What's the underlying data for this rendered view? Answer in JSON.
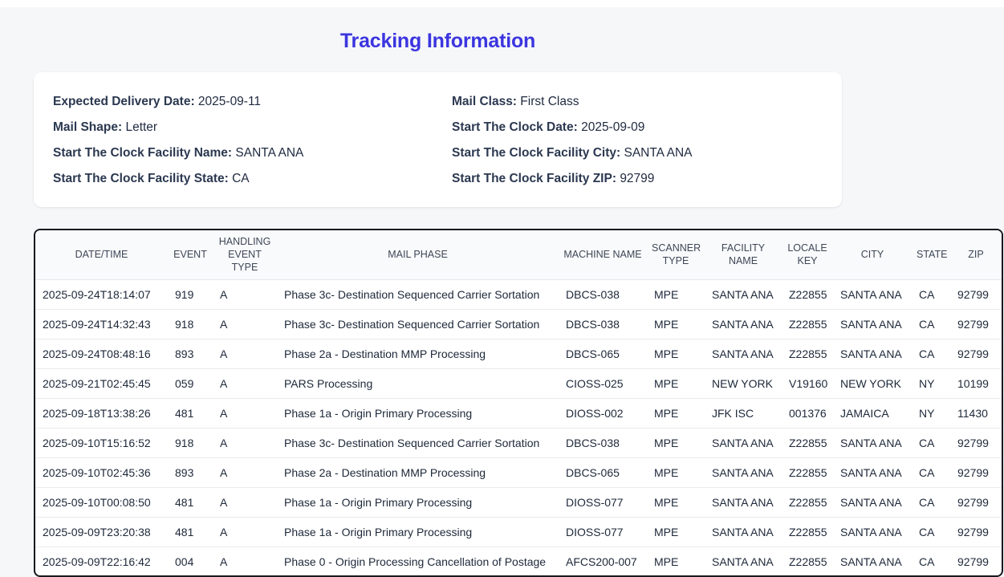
{
  "page": {
    "title": "Tracking Information"
  },
  "colors": {
    "title_accent": "#3b35e0",
    "table_border": "#16181d",
    "page_background": "#f6f7f9",
    "header_background": "#f9fafb"
  },
  "summary": {
    "fields": [
      {
        "label": "Expected Delivery Date:",
        "value": "2025-09-11"
      },
      {
        "label": "Mail Class:",
        "value": "First Class"
      },
      {
        "label": "Mail Shape:",
        "value": "Letter"
      },
      {
        "label": "Start The Clock Date:",
        "value": "2025-09-09"
      },
      {
        "label": "Start The Clock Facility Name:",
        "value": "SANTA ANA"
      },
      {
        "label": "Start The Clock Facility City:",
        "value": "SANTA ANA"
      },
      {
        "label": "Start The Clock Facility State:",
        "value": "CA"
      },
      {
        "label": "Start The Clock Facility ZIP:",
        "value": "92799"
      }
    ]
  },
  "table": {
    "columns": [
      "DATE/TIME",
      "EVENT",
      "HANDLING EVENT TYPE",
      "MAIL PHASE",
      "MACHINE NAME",
      "SCANNER TYPE",
      "FACILITY NAME",
      "LOCALE KEY",
      "CITY",
      "STATE",
      "ZIP"
    ],
    "rows": [
      [
        "2025-09-24T18:14:07",
        "919",
        "A",
        "Phase 3c- Destination Sequenced Carrier Sortation",
        "DBCS-038",
        "MPE",
        "SANTA ANA",
        "Z22855",
        "SANTA ANA",
        "CA",
        "92799"
      ],
      [
        "2025-09-24T14:32:43",
        "918",
        "A",
        "Phase 3c- Destination Sequenced Carrier Sortation",
        "DBCS-038",
        "MPE",
        "SANTA ANA",
        "Z22855",
        "SANTA ANA",
        "CA",
        "92799"
      ],
      [
        "2025-09-24T08:48:16",
        "893",
        "A",
        "Phase 2a - Destination MMP Processing",
        "DBCS-065",
        "MPE",
        "SANTA ANA",
        "Z22855",
        "SANTA ANA",
        "CA",
        "92799"
      ],
      [
        "2025-09-21T02:45:45",
        "059",
        "A",
        "PARS Processing",
        "CIOSS-025",
        "MPE",
        "NEW YORK",
        "V19160",
        "NEW YORK",
        "NY",
        "10199"
      ],
      [
        "2025-09-18T13:38:26",
        "481",
        "A",
        "Phase 1a - Origin Primary Processing",
        "DIOSS-002",
        "MPE",
        "JFK ISC",
        "001376",
        "JAMAICA",
        "NY",
        "11430"
      ],
      [
        "2025-09-10T15:16:52",
        "918",
        "A",
        "Phase 3c- Destination Sequenced Carrier Sortation",
        "DBCS-038",
        "MPE",
        "SANTA ANA",
        "Z22855",
        "SANTA ANA",
        "CA",
        "92799"
      ],
      [
        "2025-09-10T02:45:36",
        "893",
        "A",
        "Phase 2a - Destination MMP Processing",
        "DBCS-065",
        "MPE",
        "SANTA ANA",
        "Z22855",
        "SANTA ANA",
        "CA",
        "92799"
      ],
      [
        "2025-09-10T00:08:50",
        "481",
        "A",
        "Phase 1a - Origin Primary Processing",
        "DIOSS-077",
        "MPE",
        "SANTA ANA",
        "Z22855",
        "SANTA ANA",
        "CA",
        "92799"
      ],
      [
        "2025-09-09T23:20:38",
        "481",
        "A",
        "Phase 1a - Origin Primary Processing",
        "DIOSS-077",
        "MPE",
        "SANTA ANA",
        "Z22855",
        "SANTA ANA",
        "CA",
        "92799"
      ],
      [
        "2025-09-09T22:16:42",
        "004",
        "A",
        "Phase 0 - Origin Processing Cancellation of Postage",
        "AFCS200-007",
        "MPE",
        "SANTA ANA",
        "Z22855",
        "SANTA ANA",
        "CA",
        "92799"
      ]
    ]
  }
}
